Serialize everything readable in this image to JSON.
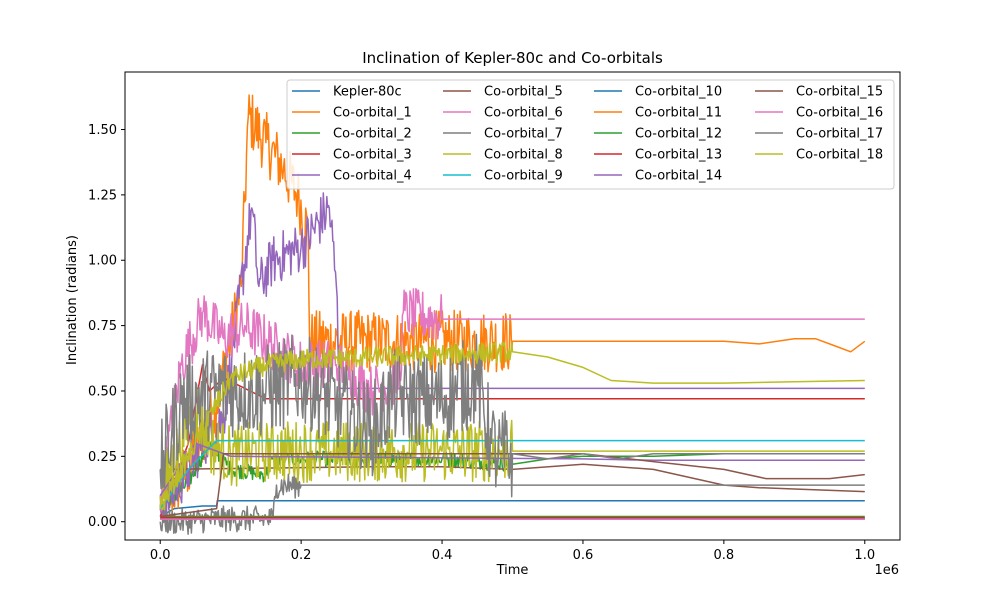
{
  "chart_data": {
    "type": "line",
    "title": "Inclination of Kepler-80c and Co-orbitals",
    "xlabel": "Time",
    "ylabel": "Inclination (radians)",
    "x_offset_label": "1e6",
    "xlim": [
      -50000,
      1050000
    ],
    "ylim": [
      -0.07,
      1.72
    ],
    "xticks": [
      0,
      200000,
      400000,
      600000,
      800000,
      1000000
    ],
    "xtick_labels": [
      "0.0",
      "0.2",
      "0.4",
      "0.6",
      "0.8",
      "1.0"
    ],
    "yticks": [
      0.0,
      0.25,
      0.5,
      0.75,
      1.0,
      1.25,
      1.5
    ],
    "ytick_labels": [
      "0.00",
      "0.25",
      "0.50",
      "0.75",
      "1.00",
      "1.25",
      "1.50"
    ],
    "grid": false,
    "legend_position": "top-right",
    "legend_columns": 4,
    "series": [
      {
        "name": "Kepler-80c",
        "color": "#1f77b4",
        "x": [
          0,
          20000,
          60000,
          80000,
          81000,
          1000000
        ],
        "y": [
          0.02,
          0.05,
          0.06,
          0.06,
          0.08,
          0.08
        ]
      },
      {
        "name": "Co-orbital_1",
        "color": "#ff7f0e",
        "noise": 0.12,
        "x": [
          0,
          40000,
          80000,
          100000,
          115000,
          125000,
          150000,
          175000,
          195000,
          210000,
          212000,
          500000,
          700000,
          800000,
          850000,
          900000,
          930000,
          960000,
          980000,
          1000000
        ],
        "y": [
          0.05,
          0.2,
          0.45,
          0.7,
          0.9,
          1.55,
          1.45,
          1.35,
          1.25,
          1.1,
          0.69,
          0.69,
          0.69,
          0.69,
          0.68,
          0.7,
          0.7,
          0.67,
          0.65,
          0.69
        ]
      },
      {
        "name": "Co-orbital_2",
        "color": "#2ca02c",
        "noise": 0.03,
        "x": [
          0,
          40000,
          70000,
          100000,
          150000,
          160000,
          200000,
          300000,
          400000,
          500000,
          550000,
          600000,
          700000,
          800000,
          1000000
        ],
        "y": [
          0.05,
          0.15,
          0.3,
          0.2,
          0.18,
          0.24,
          0.24,
          0.24,
          0.24,
          0.22,
          0.24,
          0.25,
          0.25,
          0.26,
          0.26
        ]
      },
      {
        "name": "Co-orbital_3",
        "color": "#d62728",
        "x": [
          0,
          40000,
          60000,
          70000,
          90000,
          150000,
          200000,
          1000000
        ],
        "y": [
          0.02,
          0.3,
          0.6,
          0.5,
          0.55,
          0.47,
          0.47,
          0.47
        ]
      },
      {
        "name": "Co-orbital_4",
        "color": "#9467bd",
        "noise": 0.1,
        "x": [
          0,
          40000,
          60000,
          90000,
          130000,
          140000,
          160000,
          200000,
          240000,
          250000,
          255000,
          1000000
        ],
        "y": [
          0.05,
          0.2,
          0.3,
          0.4,
          1.2,
          0.9,
          1.0,
          1.05,
          1.2,
          0.9,
          0.51,
          0.51
        ]
      },
      {
        "name": "Co-orbital_5",
        "color": "#8c564b",
        "x": [
          0,
          300000,
          400000,
          500000,
          600000,
          700000,
          800000,
          850000,
          900000,
          1000000
        ],
        "y": [
          0.2,
          0.21,
          0.21,
          0.2,
          0.22,
          0.2,
          0.14,
          0.13,
          0.125,
          0.115
        ]
      },
      {
        "name": "Co-orbital_6",
        "color": "#e377c2",
        "noise": 0.1,
        "x": [
          0,
          30000,
          60000,
          90000,
          120000,
          200000,
          250000,
          300000,
          340000,
          345000,
          400000,
          1000000
        ],
        "y": [
          0.1,
          0.6,
          0.8,
          0.7,
          0.75,
          0.6,
          0.6,
          0.5,
          0.55,
          0.8,
          0.775,
          0.775
        ]
      },
      {
        "name": "Co-orbital_7",
        "color": "#7f7f7f",
        "noise": 0.05,
        "x": [
          0,
          30000,
          80000,
          150000,
          160000,
          165000,
          200000,
          1000000
        ],
        "y": [
          0.0,
          0.0,
          0.01,
          0.01,
          0.01,
          0.14,
          0.14,
          0.14
        ]
      },
      {
        "name": "Co-orbital_8",
        "color": "#bcbd22",
        "noise": 0.12,
        "x": [
          0,
          50000,
          70000,
          100000,
          150000,
          200000,
          300000,
          400000,
          500000,
          600000,
          650000,
          700000,
          800000,
          900000,
          1000000
        ],
        "y": [
          0.1,
          0.45,
          0.3,
          0.25,
          0.27,
          0.27,
          0.27,
          0.27,
          0.27,
          0.27,
          0.27,
          0.27,
          0.27,
          0.27,
          0.27
        ]
      },
      {
        "name": "Co-orbital_9",
        "color": "#17becf",
        "x": [
          0,
          40000,
          80000,
          150000,
          1000000
        ],
        "y": [
          0.05,
          0.2,
          0.31,
          0.31,
          0.31
        ]
      },
      {
        "name": "Co-orbital_10",
        "color": "#1f77b4",
        "x": [
          0,
          1000000
        ],
        "y": [
          0.01,
          0.01
        ]
      },
      {
        "name": "Co-orbital_11",
        "color": "#ff7f0e",
        "x": [
          0,
          1000000
        ],
        "y": [
          0.015,
          0.015
        ]
      },
      {
        "name": "Co-orbital_12",
        "color": "#2ca02c",
        "x": [
          0,
          1000000
        ],
        "y": [
          0.02,
          0.02
        ]
      },
      {
        "name": "Co-orbital_13",
        "color": "#d62728",
        "noise": 0.008,
        "x": [
          0,
          1000000
        ],
        "y": [
          0.015,
          0.015
        ]
      },
      {
        "name": "Co-orbital_14",
        "color": "#9467bd",
        "x": [
          0,
          50000,
          100000,
          600000,
          700000,
          1000000
        ],
        "y": [
          0.1,
          0.3,
          0.25,
          0.24,
          0.235,
          0.235
        ]
      },
      {
        "name": "Co-orbital_15",
        "color": "#8c564b",
        "x": [
          0,
          80000,
          90000,
          600000,
          700000,
          800000,
          860000,
          950000,
          1000000
        ],
        "y": [
          0.02,
          0.05,
          0.26,
          0.26,
          0.23,
          0.2,
          0.165,
          0.165,
          0.18
        ]
      },
      {
        "name": "Co-orbital_16",
        "color": "#e377c2",
        "x": [
          0,
          1000000
        ],
        "y": [
          0.01,
          0.01
        ]
      },
      {
        "name": "Co-orbital_17",
        "color": "#7f7f7f",
        "noise": 0.18,
        "x": [
          0,
          30000,
          80000,
          150000,
          200000,
          250000,
          300000,
          330000,
          350000,
          400000,
          420000,
          450000,
          470000,
          480000,
          500000,
          550000,
          600000,
          650000,
          700000,
          800000,
          1000000
        ],
        "y": [
          0.2,
          0.45,
          0.5,
          0.5,
          0.55,
          0.45,
          0.35,
          0.48,
          0.47,
          0.47,
          0.5,
          0.55,
          0.3,
          0.25,
          0.26,
          0.24,
          0.26,
          0.24,
          0.26,
          0.26,
          0.26
        ]
      },
      {
        "name": "Co-orbital_18",
        "color": "#bcbd22",
        "noise": 0.04,
        "x": [
          0,
          100000,
          150000,
          200000,
          300000,
          400000,
          500000,
          550000,
          600000,
          640000,
          700000,
          800000,
          900000,
          1000000
        ],
        "y": [
          0.05,
          0.55,
          0.6,
          0.62,
          0.63,
          0.64,
          0.65,
          0.63,
          0.59,
          0.54,
          0.53,
          0.53,
          0.535,
          0.54
        ]
      }
    ]
  }
}
